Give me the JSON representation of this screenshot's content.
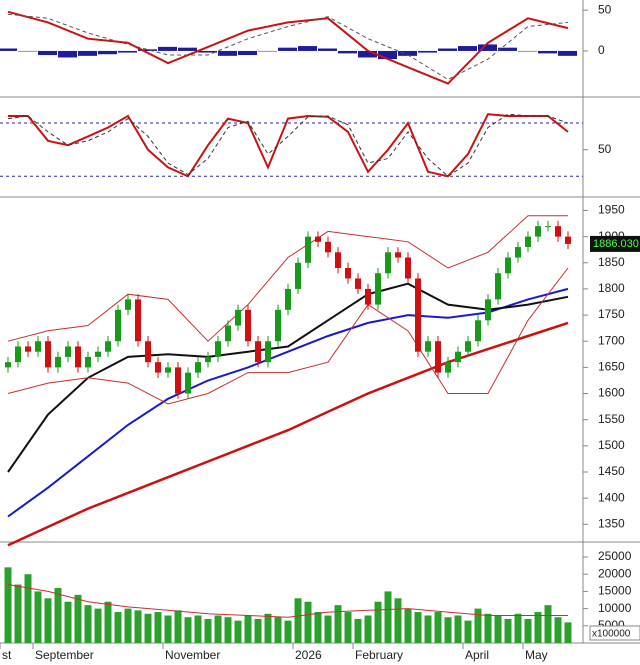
{
  "chart_data": [
    {
      "type": "macd",
      "ylim": [
        -54,
        60
      ],
      "yticks": [
        0,
        50
      ],
      "histogram": {
        "color": "#1c1c9c",
        "x": [
          0,
          2,
          4,
          6,
          8,
          10,
          12,
          14,
          16,
          18,
          20,
          22,
          24,
          26,
          28,
          30,
          32,
          34,
          36,
          38,
          40,
          42,
          44,
          46,
          48,
          50,
          52,
          54,
          56
        ],
        "values": [
          3,
          0,
          -5,
          -8,
          -6,
          -4,
          -2,
          2,
          5,
          4,
          -2,
          -6,
          -5,
          0,
          4,
          6,
          3,
          -3,
          -8,
          -10,
          -6,
          -2,
          3,
          6,
          8,
          4,
          0,
          -3,
          -6
        ]
      },
      "series": [
        {
          "color": "#cc1111",
          "style": "solid",
          "x": [
            0,
            4,
            8,
            12,
            16,
            20,
            24,
            28,
            32,
            36,
            40,
            44,
            48,
            52,
            56
          ],
          "values": [
            48,
            35,
            15,
            10,
            -15,
            5,
            25,
            35,
            40,
            0,
            -20,
            -40,
            10,
            40,
            28
          ]
        },
        {
          "color": "#555555",
          "style": "dashed",
          "x": [
            0,
            4,
            8,
            12,
            16,
            20,
            24,
            28,
            32,
            36,
            40,
            44,
            48,
            52,
            56
          ],
          "values": [
            45,
            40,
            22,
            8,
            -5,
            -5,
            15,
            30,
            42,
            15,
            -5,
            -35,
            -10,
            30,
            35
          ]
        }
      ]
    },
    {
      "type": "line",
      "ylim": [
        0,
        106
      ],
      "yticks": [
        50
      ],
      "levels": [
        80,
        20
      ],
      "level_color": "#2a2aa0",
      "series": [
        {
          "color": "#cc1111",
          "style": "solid",
          "x": [
            0,
            2,
            4,
            6,
            8,
            10,
            12,
            14,
            16,
            18,
            20,
            22,
            24,
            26,
            28,
            30,
            32,
            34,
            36,
            38,
            40,
            42,
            44,
            46,
            48,
            50,
            52,
            54,
            56
          ],
          "values": [
            88,
            88,
            60,
            55,
            65,
            75,
            88,
            50,
            30,
            20,
            55,
            85,
            80,
            30,
            85,
            88,
            87,
            70,
            25,
            50,
            80,
            25,
            20,
            45,
            90,
            88,
            88,
            88,
            70
          ]
        },
        {
          "color": "#333333",
          "style": "dashed",
          "x": [
            0,
            2,
            4,
            6,
            8,
            10,
            12,
            14,
            16,
            18,
            20,
            22,
            24,
            26,
            28,
            30,
            32,
            34,
            36,
            38,
            40,
            42,
            44,
            46,
            48,
            50,
            52,
            54,
            56
          ],
          "values": [
            85,
            88,
            70,
            55,
            60,
            70,
            85,
            65,
            35,
            22,
            40,
            75,
            82,
            45,
            65,
            87,
            88,
            78,
            35,
            40,
            70,
            40,
            20,
            35,
            75,
            90,
            88,
            88,
            80
          ]
        }
      ]
    },
    {
      "type": "candlestick",
      "ylim": [
        1320,
        1970
      ],
      "yticks": [
        1350,
        1400,
        1450,
        1500,
        1550,
        1600,
        1650,
        1700,
        1750,
        1800,
        1850,
        1900,
        1950
      ],
      "up_color": "#1a9a1a",
      "down_color": "#d01010",
      "open": [
        1650,
        1660,
        1690,
        1680,
        1700,
        1650,
        1670,
        1690,
        1650,
        1670,
        1680,
        1700,
        1760,
        1780,
        1700,
        1660,
        1640,
        1650,
        1600,
        1640,
        1660,
        1670,
        1700,
        1730,
        1760,
        1700,
        1660,
        1700,
        1760,
        1800,
        1850,
        1900,
        1890,
        1870,
        1840,
        1820,
        1800,
        1770,
        1830,
        1870,
        1860,
        1820,
        1680,
        1700,
        1640,
        1660,
        1680,
        1700,
        1740,
        1780,
        1830,
        1860,
        1880,
        1900,
        1920,
        1920,
        1900
      ],
      "high": [
        1670,
        1700,
        1700,
        1710,
        1710,
        1680,
        1700,
        1700,
        1680,
        1690,
        1710,
        1770,
        1790,
        1790,
        1710,
        1670,
        1660,
        1660,
        1650,
        1670,
        1680,
        1710,
        1740,
        1770,
        1770,
        1710,
        1710,
        1770,
        1810,
        1860,
        1910,
        1910,
        1900,
        1880,
        1850,
        1830,
        1810,
        1840,
        1880,
        1880,
        1870,
        1830,
        1710,
        1710,
        1670,
        1690,
        1710,
        1750,
        1790,
        1840,
        1870,
        1890,
        1910,
        1930,
        1930,
        1930,
        1910
      ],
      "low": [
        1640,
        1650,
        1670,
        1670,
        1640,
        1640,
        1660,
        1640,
        1640,
        1660,
        1670,
        1690,
        1750,
        1690,
        1650,
        1630,
        1630,
        1590,
        1590,
        1630,
        1650,
        1660,
        1690,
        1720,
        1690,
        1650,
        1650,
        1690,
        1750,
        1790,
        1840,
        1880,
        1860,
        1830,
        1810,
        1790,
        1760,
        1760,
        1820,
        1850,
        1810,
        1670,
        1670,
        1630,
        1630,
        1650,
        1670,
        1690,
        1730,
        1770,
        1820,
        1850,
        1870,
        1890,
        1910,
        1890,
        1876
      ],
      "close": [
        1660,
        1690,
        1680,
        1700,
        1650,
        1670,
        1690,
        1650,
        1670,
        1680,
        1700,
        1760,
        1780,
        1700,
        1660,
        1640,
        1650,
        1600,
        1640,
        1660,
        1670,
        1700,
        1730,
        1760,
        1700,
        1660,
        1700,
        1760,
        1800,
        1850,
        1900,
        1890,
        1870,
        1840,
        1820,
        1800,
        1770,
        1830,
        1870,
        1860,
        1820,
        1680,
        1700,
        1640,
        1660,
        1680,
        1700,
        1740,
        1780,
        1830,
        1860,
        1880,
        1900,
        1920,
        1920,
        1900,
        1886.03
      ],
      "last_price": {
        "value": 1886.03,
        "label": "1886.030"
      },
      "series": [
        {
          "color": "#cc1111",
          "style": "thick",
          "x": [
            0,
            4,
            8,
            12,
            16,
            20,
            24,
            28,
            32,
            36,
            40,
            44,
            48,
            52,
            56
          ],
          "values": [
            1310,
            1345,
            1380,
            1410,
            1440,
            1470,
            1500,
            1530,
            1565,
            1600,
            1630,
            1660,
            1685,
            1710,
            1735
          ]
        },
        {
          "color": "#1a1acc",
          "style": "solid",
          "x": [
            0,
            4,
            8,
            12,
            16,
            20,
            24,
            28,
            32,
            36,
            40,
            44,
            48,
            52,
            56
          ],
          "values": [
            1365,
            1420,
            1480,
            1540,
            1590,
            1625,
            1650,
            1680,
            1710,
            1735,
            1750,
            1745,
            1755,
            1780,
            1800
          ]
        },
        {
          "color": "#111111",
          "style": "solid",
          "x": [
            0,
            4,
            8,
            12,
            16,
            20,
            24,
            28,
            32,
            36,
            40,
            44,
            48,
            52,
            56
          ],
          "values": [
            1450,
            1560,
            1630,
            1670,
            1675,
            1670,
            1680,
            1690,
            1740,
            1790,
            1810,
            1770,
            1760,
            1770,
            1785
          ]
        },
        {
          "color": "#c83030",
          "style": "thin",
          "x": [
            0,
            4,
            8,
            12,
            16,
            20,
            24,
            28,
            32,
            36,
            40,
            44,
            48,
            52,
            56
          ],
          "values": [
            1700,
            1720,
            1730,
            1790,
            1780,
            1700,
            1770,
            1860,
            1910,
            1900,
            1890,
            1840,
            1870,
            1940,
            1940
          ]
        },
        {
          "color": "#c83030",
          "style": "thin",
          "x": [
            0,
            4,
            8,
            12,
            16,
            20,
            24,
            28,
            32,
            36,
            40,
            44,
            48,
            52,
            56
          ],
          "values": [
            1600,
            1620,
            1630,
            1620,
            1580,
            1600,
            1640,
            1640,
            1660,
            1770,
            1720,
            1600,
            1600,
            1740,
            1840
          ]
        }
      ]
    },
    {
      "type": "bar",
      "ylim": [
        0,
        28500
      ],
      "yticks": [
        5000,
        10000,
        15000,
        20000,
        25000
      ],
      "color": "#2ca02c",
      "values": [
        22000,
        17000,
        20000,
        15000,
        13000,
        16000,
        12000,
        14000,
        11000,
        10000,
        12000,
        9000,
        10000,
        9500,
        8500,
        9000,
        8000,
        9500,
        7500,
        8000,
        7000,
        8000,
        7500,
        6500,
        8000,
        7000,
        8500,
        7500,
        6500,
        13000,
        12000,
        9000,
        8000,
        11000,
        9000,
        7000,
        8000,
        12000,
        15000,
        13000,
        10000,
        9000,
        8000,
        9000,
        7500,
        8000,
        6500,
        10000,
        8500,
        8000,
        7000,
        8500,
        7000,
        9000,
        11000,
        7500,
        6000
      ],
      "unit": "x100000",
      "xlim": [
        -0.8,
        57.2
      ],
      "xticks": [
        {
          "value": -0.8,
          "label": "st"
        },
        {
          "value": 2.5,
          "label": "September"
        },
        {
          "value": 15.5,
          "label": "November"
        },
        {
          "value": 28.5,
          "label": "2026"
        },
        {
          "value": 34.5,
          "label": "February"
        },
        {
          "value": 45.5,
          "label": "April"
        },
        {
          "value": 51.5,
          "label": "May"
        }
      ],
      "series": [
        {
          "color": "#c83030",
          "style": "thin",
          "x": [
            0,
            4,
            8,
            12,
            16,
            20,
            24,
            28,
            32,
            36,
            40,
            44,
            48,
            52,
            56
          ],
          "values": [
            17000,
            15000,
            12000,
            10500,
            9500,
            8500,
            8000,
            7500,
            9000,
            9500,
            10000,
            9000,
            8000,
            8000,
            8000
          ]
        }
      ]
    }
  ]
}
